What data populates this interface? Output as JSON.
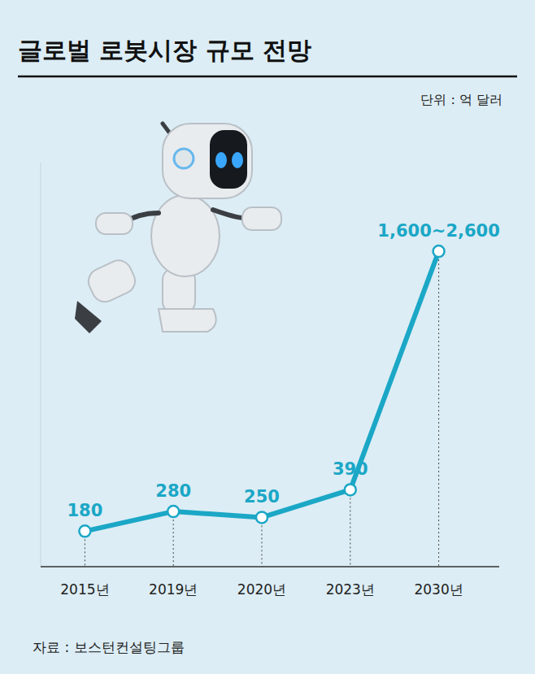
{
  "chart_data": {
    "type": "line",
    "title": "글로벌 로봇시장 규모 전망",
    "unit": "단위 : 억 달러",
    "source": "자료 : 보스턴컨설팅그룹",
    "categories": [
      "2015년",
      "2019년",
      "2020년",
      "2023년",
      "2030년"
    ],
    "values": [
      180,
      280,
      250,
      390,
      1600
    ],
    "value_labels": [
      "180",
      "280",
      "250",
      "390",
      "1,600~2,600"
    ],
    "color": "#1ba7c6",
    "ylim": [
      0,
      2050
    ],
    "tick_labels": "x",
    "data_labels": true,
    "marker": "circle",
    "grid": false
  }
}
